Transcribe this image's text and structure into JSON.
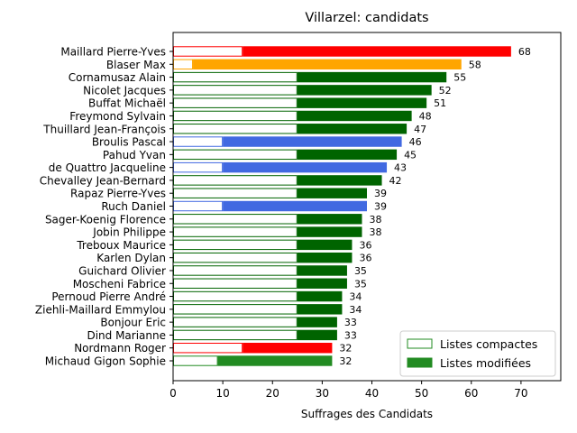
{
  "chart_data": {
    "type": "bar",
    "orientation": "horizontal-stacked",
    "title": "Villarzel: candidats",
    "xlabel": "Suffrages des Candidats",
    "ylabel": "",
    "xlim": [
      0,
      78
    ],
    "xticks": [
      0,
      10,
      20,
      30,
      40,
      50,
      60,
      70
    ],
    "grid": false,
    "legend_position": "bottom-right",
    "legend": [
      {
        "label": "Listes compactes",
        "style": "outline",
        "color": "#228b22"
      },
      {
        "label": "Listes modifiées",
        "style": "filled",
        "color": "#228b22"
      }
    ],
    "candidates": [
      {
        "name": "Maillard Pierre-Yves",
        "compact": 14,
        "total": 68,
        "color": "#ff0000"
      },
      {
        "name": "Blaser Max",
        "compact": 4,
        "total": 58,
        "color": "#ffa500"
      },
      {
        "name": "Cornamusaz Alain",
        "compact": 25,
        "total": 55,
        "color": "#006400"
      },
      {
        "name": "Nicolet Jacques",
        "compact": 25,
        "total": 52,
        "color": "#006400"
      },
      {
        "name": "Buffat Michaël",
        "compact": 25,
        "total": 51,
        "color": "#006400"
      },
      {
        "name": "Freymond Sylvain",
        "compact": 25,
        "total": 48,
        "color": "#006400"
      },
      {
        "name": "Thuillard Jean-François",
        "compact": 25,
        "total": 47,
        "color": "#006400"
      },
      {
        "name": "Broulis Pascal",
        "compact": 10,
        "total": 46,
        "color": "#4169e1"
      },
      {
        "name": "Pahud Yvan",
        "compact": 25,
        "total": 45,
        "color": "#006400"
      },
      {
        "name": "de Quattro Jacqueline",
        "compact": 10,
        "total": 43,
        "color": "#4169e1"
      },
      {
        "name": "Chevalley Jean-Bernard",
        "compact": 25,
        "total": 42,
        "color": "#006400"
      },
      {
        "name": "Rapaz Pierre-Yves",
        "compact": 25,
        "total": 39,
        "color": "#006400"
      },
      {
        "name": "Ruch Daniel",
        "compact": 10,
        "total": 39,
        "color": "#4169e1"
      },
      {
        "name": "Sager-Koenig Florence",
        "compact": 25,
        "total": 38,
        "color": "#006400"
      },
      {
        "name": "Jobin Philippe",
        "compact": 25,
        "total": 38,
        "color": "#006400"
      },
      {
        "name": "Treboux Maurice",
        "compact": 25,
        "total": 36,
        "color": "#006400"
      },
      {
        "name": "Karlen Dylan",
        "compact": 25,
        "total": 36,
        "color": "#006400"
      },
      {
        "name": "Guichard Olivier",
        "compact": 25,
        "total": 35,
        "color": "#006400"
      },
      {
        "name": "Moscheni Fabrice",
        "compact": 25,
        "total": 35,
        "color": "#006400"
      },
      {
        "name": "Pernoud Pierre André",
        "compact": 25,
        "total": 34,
        "color": "#006400"
      },
      {
        "name": "Ziehli-Maillard Emmylou",
        "compact": 25,
        "total": 34,
        "color": "#006400"
      },
      {
        "name": "Bonjour Eric",
        "compact": 25,
        "total": 33,
        "color": "#006400"
      },
      {
        "name": "Dind Marianne",
        "compact": 25,
        "total": 33,
        "color": "#006400"
      },
      {
        "name": "Nordmann Roger",
        "compact": 14,
        "total": 32,
        "color": "#ff0000"
      },
      {
        "name": "Michaud Gigon Sophie",
        "compact": 9,
        "total": 32,
        "color": "#228b22"
      }
    ]
  }
}
